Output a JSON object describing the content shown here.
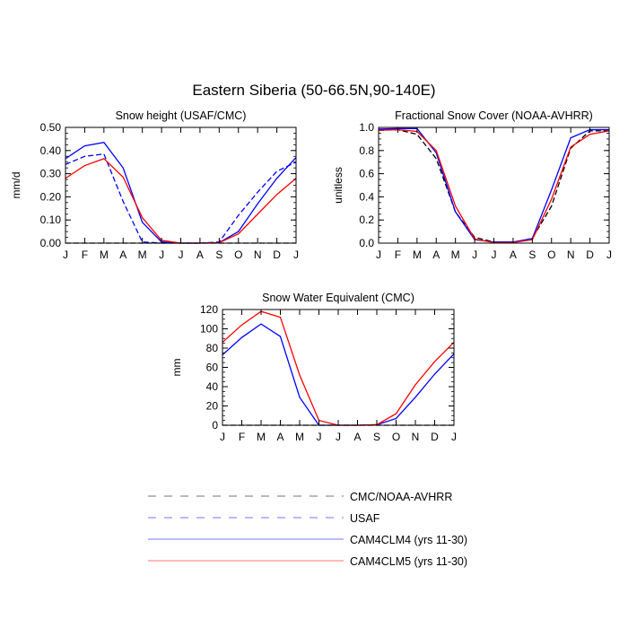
{
  "figure": {
    "title": "Eastern Siberia (50-66.5N,90-140E)"
  },
  "colors": {
    "obs": "#000000",
    "usaf": "#0000ff",
    "cam4": "#0000ff",
    "cam5": "#ff0000",
    "legend_line": "#999999"
  },
  "legend": [
    {
      "label": "CMC/NOAA-AVHRR",
      "color": "#000000",
      "dash": "dashed"
    },
    {
      "label": "USAF",
      "color": "#0000ff",
      "dash": "dashed"
    },
    {
      "label": "CAM4CLM4 (yrs 11-30)",
      "color": "#0000ff",
      "dash": "solid"
    },
    {
      "label": "CAM4CLM5 (yrs 11-30)",
      "color": "#ff0000",
      "dash": "solid"
    }
  ],
  "chart_data": [
    {
      "type": "line",
      "title": "Snow height (USAF/CMC)",
      "ylabel": "mm/d",
      "xlabel": "",
      "x": [
        "J",
        "F",
        "M",
        "A",
        "M",
        "J",
        "J",
        "A",
        "S",
        "O",
        "N",
        "D",
        "J"
      ],
      "ylim": [
        0,
        0.5
      ],
      "yticks": [
        0,
        0.1,
        0.2,
        0.3,
        0.4,
        0.5
      ],
      "ytick_labels": [
        "0.00",
        "0.10",
        "0.20",
        "0.30",
        "0.40",
        "0.50"
      ],
      "series": [
        {
          "name": "CMC/NOAA-AVHRR",
          "dash": "dashed",
          "color": "#000000",
          "values": [
            0,
            0,
            0,
            0,
            0,
            0,
            0,
            0,
            0,
            0,
            0,
            0,
            0
          ]
        },
        {
          "name": "USAF",
          "dash": "dashed",
          "color": "#0000ff",
          "values": [
            0.34,
            0.375,
            0.385,
            0.18,
            0.005,
            0,
            0,
            0,
            0.005,
            0.12,
            0.22,
            0.31,
            0.35
          ]
        },
        {
          "name": "CAM4CLM4 (yrs 11-30)",
          "dash": "solid",
          "color": "#0000ff",
          "values": [
            0.365,
            0.42,
            0.435,
            0.325,
            0.09,
            0.005,
            0,
            0,
            0.002,
            0.05,
            0.17,
            0.28,
            0.37
          ]
        },
        {
          "name": "CAM4CLM5 (yrs 11-30)",
          "dash": "solid",
          "color": "#ff0000",
          "values": [
            0.28,
            0.335,
            0.365,
            0.285,
            0.11,
            0.012,
            0,
            0,
            0.002,
            0.04,
            0.125,
            0.21,
            0.28
          ]
        }
      ]
    },
    {
      "type": "line",
      "title": "Fractional Snow Cover (NOAA-AVHRR)",
      "ylabel": "unitless",
      "xlabel": "",
      "x": [
        "J",
        "F",
        "M",
        "A",
        "M",
        "J",
        "J",
        "A",
        "S",
        "O",
        "N",
        "D",
        "J"
      ],
      "ylim": [
        0,
        1.0
      ],
      "yticks": [
        0,
        0.2,
        0.4,
        0.6,
        0.8,
        1.0
      ],
      "ytick_labels": [
        "0.0",
        "0.2",
        "0.4",
        "0.6",
        "0.8",
        "1.0"
      ],
      "series": [
        {
          "name": "CMC/NOAA-AVHRR",
          "dash": "dashed",
          "color": "#000000",
          "values": [
            0.975,
            0.98,
            0.94,
            0.73,
            0.27,
            0.05,
            0.01,
            0.005,
            0.04,
            0.32,
            0.82,
            0.97,
            0.97
          ]
        },
        {
          "name": "CAM4CLM4 (yrs 11-30)",
          "dash": "solid",
          "color": "#0000ff",
          "values": [
            0.985,
            0.99,
            0.99,
            0.78,
            0.27,
            0.03,
            0.01,
            0.01,
            0.04,
            0.46,
            0.91,
            0.98,
            0.98
          ]
        },
        {
          "name": "CAM4CLM5 (yrs 11-30)",
          "dash": "solid",
          "color": "#ff0000",
          "values": [
            0.975,
            0.98,
            0.965,
            0.8,
            0.32,
            0.035,
            0.005,
            0.005,
            0.03,
            0.38,
            0.83,
            0.94,
            0.97
          ]
        }
      ]
    },
    {
      "type": "line",
      "title": "Snow Water Equivalent (CMC)",
      "ylabel": "mm",
      "xlabel": "",
      "x": [
        "J",
        "F",
        "M",
        "A",
        "M",
        "J",
        "J",
        "A",
        "S",
        "O",
        "N",
        "D",
        "J"
      ],
      "ylim": [
        0,
        120
      ],
      "yticks": [
        0,
        20,
        40,
        60,
        80,
        100,
        120
      ],
      "ytick_labels": [
        "0",
        "20",
        "40",
        "60",
        "80",
        "100",
        "120"
      ],
      "series": [
        {
          "name": "CMC/NOAA-AVHRR",
          "dash": "dashed",
          "color": "#000000",
          "values": [
            0,
            0,
            0,
            0,
            0,
            0,
            0,
            0,
            0,
            0,
            0,
            0,
            0
          ]
        },
        {
          "name": "CAM4CLM4 (yrs 11-30)",
          "dash": "solid",
          "color": "#0000ff",
          "values": [
            73,
            91,
            105,
            92,
            29,
            0,
            0,
            0,
            0.5,
            7,
            29,
            53,
            74
          ]
        },
        {
          "name": "CAM4CLM5 (yrs 11-30)",
          "dash": "solid",
          "color": "#ff0000",
          "values": [
            86,
            104,
            118,
            112,
            52,
            5,
            0,
            0,
            0.5,
            12,
            42,
            66,
            86
          ]
        }
      ]
    }
  ]
}
